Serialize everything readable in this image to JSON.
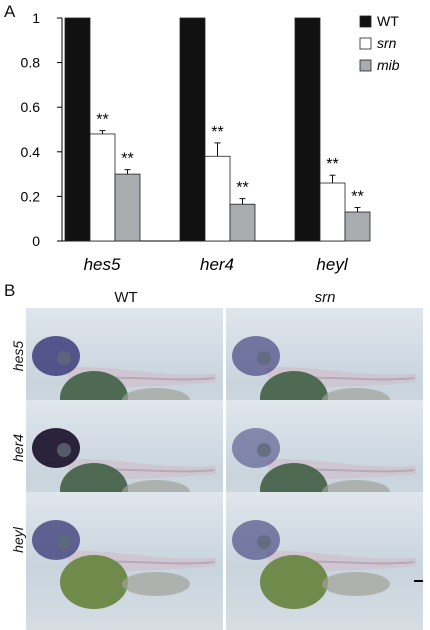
{
  "panel_a_letter": "A",
  "panel_b_letter": "B",
  "chart_data": {
    "type": "bar",
    "categories": [
      "hes5",
      "her4",
      "heyl"
    ],
    "series": [
      {
        "name": "WT",
        "values": [
          1.0,
          1.0,
          1.0
        ],
        "errors": [
          0,
          0,
          0
        ],
        "color": "#111111"
      },
      {
        "name": "srn",
        "values": [
          0.48,
          0.38,
          0.26
        ],
        "errors": [
          0.015,
          0.06,
          0.035
        ],
        "color": "#ffffff"
      },
      {
        "name": "mib",
        "values": [
          0.3,
          0.165,
          0.13
        ],
        "errors": [
          0.02,
          0.025,
          0.02
        ],
        "color": "#a8acae"
      }
    ],
    "significance": [
      [
        "",
        "**",
        "**"
      ],
      [
        "",
        "**",
        "**"
      ],
      [
        "",
        "**",
        "**"
      ]
    ],
    "yticks": [
      "0",
      "0.2",
      "0.4",
      "0.6",
      "0.8",
      "1"
    ],
    "ylim": [
      0,
      1
    ],
    "legend_position": "top-right"
  },
  "panel_b": {
    "columns": [
      "WT",
      "srn"
    ],
    "rows": [
      "hes5",
      "her4",
      "heyl"
    ],
    "staining": [
      [
        0.85,
        0.55
      ],
      [
        0.95,
        0.4
      ],
      [
        0.75,
        0.5
      ]
    ]
  }
}
